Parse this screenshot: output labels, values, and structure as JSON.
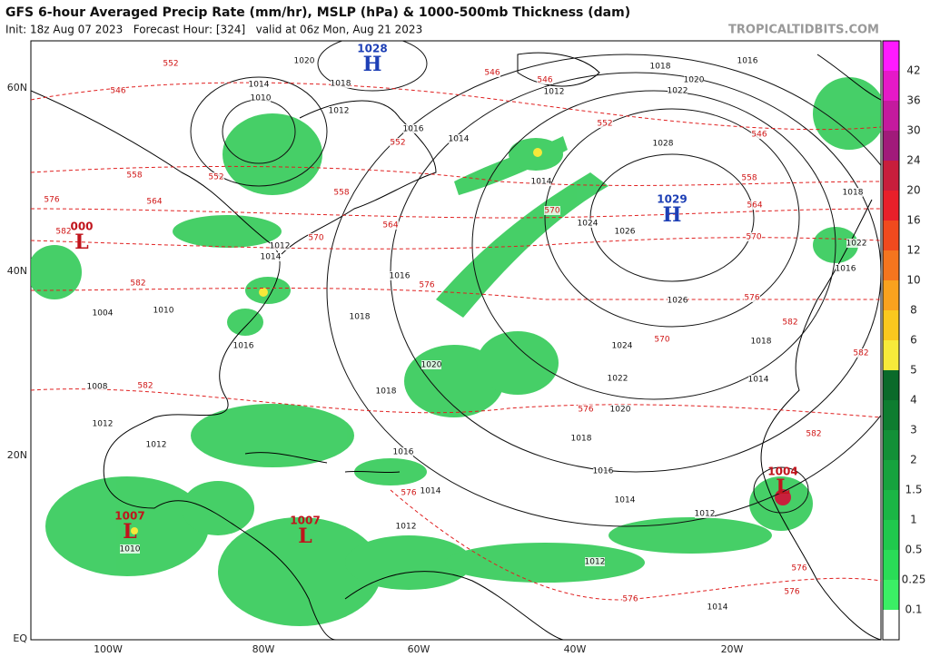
{
  "header": {
    "title": "GFS 6-hour Averaged Precip Rate (mm/hr), MSLP (hPa) & 1000-500mb Thickness (dam)",
    "subtitle": "Init: 18z Aug 07 2023   Forecast Hour: [324]   valid at 06z Mon, Aug 21 2023",
    "source": "TROPICALTIDBITS.COM"
  },
  "colorbar": {
    "labels": [
      "42",
      "36",
      "30",
      "24",
      "20",
      "16",
      "12",
      "10",
      "8",
      "6",
      "5",
      "4",
      "3",
      "2",
      "1.5",
      "1",
      "0.5",
      "0.25",
      "0.1"
    ],
    "colors": [
      "#ff1aff",
      "#e619c8",
      "#c41a9e",
      "#a11a7a",
      "#c81e3c",
      "#e8202a",
      "#f04a1e",
      "#f5751e",
      "#f9a21e",
      "#fac81e",
      "#f7ea3a",
      "#0a6a2a",
      "#0e7d30",
      "#129037",
      "#16a33e",
      "#1bb645",
      "#20c94d",
      "#2adc57",
      "#3bef65",
      "#ffffff"
    ]
  },
  "lat_labels": [
    "60N",
    "40N",
    "20N",
    "EQ"
  ],
  "lon_labels": [
    "100W",
    "80W",
    "60W",
    "40W",
    "20W"
  ],
  "pressure_centers": [
    {
      "kind": "H",
      "value": "1028"
    },
    {
      "kind": "H",
      "value": "1029"
    },
    {
      "kind": "L",
      "value": "000"
    },
    {
      "kind": "L",
      "value": "1007"
    },
    {
      "kind": "L",
      "value": "1007"
    },
    {
      "kind": "L",
      "value": "1004"
    }
  ],
  "isobar_labels": [
    "1020",
    "1018",
    "1014",
    "1010",
    "1012",
    "1016",
    "1014",
    "1014",
    "1024",
    "1026",
    "1028",
    "1018",
    "1020",
    "1022",
    "1016",
    "1012",
    "1026",
    "1024",
    "1022",
    "1020",
    "1018",
    "1016",
    "1014",
    "1012",
    "1012",
    "1014",
    "1018",
    "1014",
    "1016",
    "1022",
    "1018",
    "1020",
    "1018",
    "1016",
    "1014",
    "1012",
    "1016",
    "1018",
    "1016",
    "1012",
    "1014",
    "1012",
    "1010",
    "1004",
    "1008",
    "1012",
    "1010"
  ],
  "thickness_labels": [
    "552",
    "546",
    "546",
    "546",
    "552",
    "546",
    "558",
    "564",
    "570",
    "576",
    "570",
    "582",
    "582",
    "576",
    "576",
    "576",
    "576",
    "576",
    "582",
    "558",
    "564",
    "570",
    "576",
    "570",
    "582",
    "582",
    "552",
    "558",
    "564",
    "576",
    "582",
    "552"
  ]
}
